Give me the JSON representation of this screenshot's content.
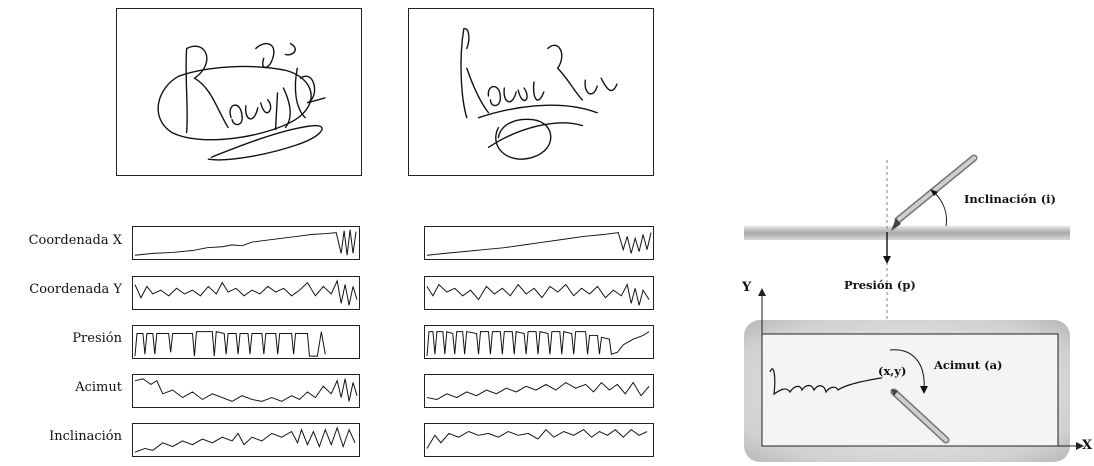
{
  "signals": {
    "labels": [
      "Coordenada X",
      "Coordenada Y",
      "Presión",
      "Acimut",
      "Inclinación"
    ]
  },
  "diagram": {
    "inclination_label": "Inclinación (i)",
    "pressure_label": "Presión (p)",
    "azimuth_label": "Acimut (a)",
    "xy_label": "(x,y)",
    "y_axis_label": "Y",
    "x_axis_label": "X"
  }
}
